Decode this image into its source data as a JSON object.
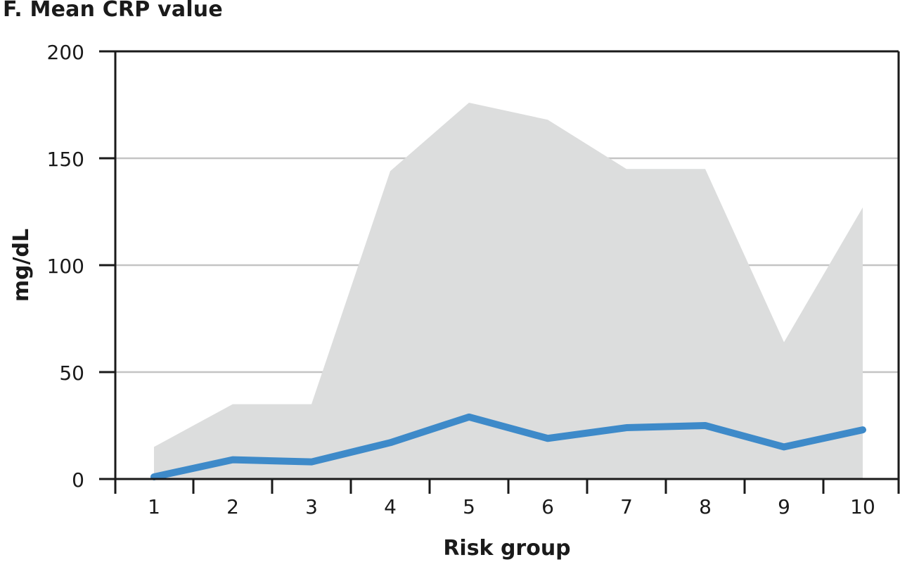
{
  "chart_data": {
    "type": "area",
    "title": "F. Mean CRP value",
    "xlabel": "Risk group",
    "ylabel": "mg/dL",
    "x": [
      1,
      2,
      3,
      4,
      5,
      6,
      7,
      8,
      9,
      10
    ],
    "x_tick_labels": [
      "1",
      "2",
      "3",
      "4",
      "5",
      "6",
      "7",
      "8",
      "9",
      "10"
    ],
    "y_ticks": [
      0,
      50,
      100,
      150,
      200
    ],
    "ylim": [
      0,
      200
    ],
    "grid": "horizontal",
    "series": [
      {
        "values": [
          15,
          35,
          35,
          144,
          176,
          168,
          145,
          145,
          64,
          127
        ],
        "style": "area",
        "color": "#dcdddd"
      },
      {
        "values": [
          1,
          9,
          8,
          17,
          29,
          19,
          24,
          25,
          15,
          23
        ],
        "style": "line",
        "color": "#3e8ac9"
      }
    ]
  }
}
